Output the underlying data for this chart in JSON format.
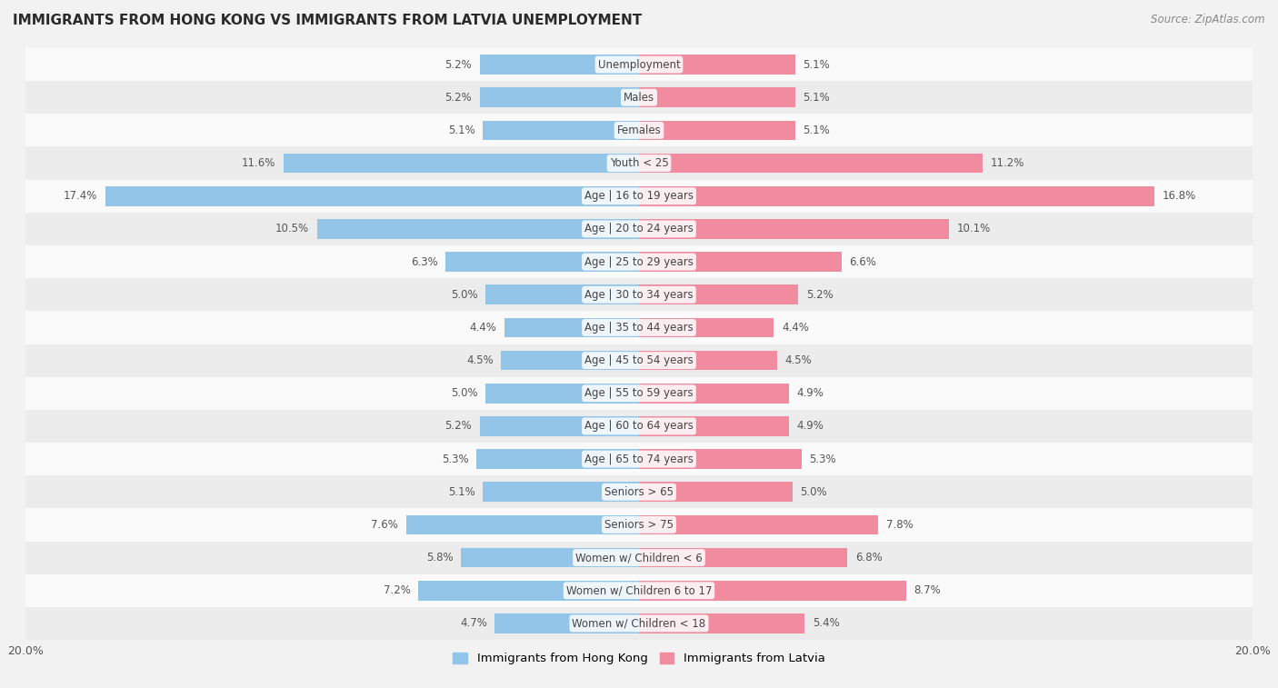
{
  "title": "IMMIGRANTS FROM HONG KONG VS IMMIGRANTS FROM LATVIA UNEMPLOYMENT",
  "source": "Source: ZipAtlas.com",
  "categories": [
    "Unemployment",
    "Males",
    "Females",
    "Youth < 25",
    "Age | 16 to 19 years",
    "Age | 20 to 24 years",
    "Age | 25 to 29 years",
    "Age | 30 to 34 years",
    "Age | 35 to 44 years",
    "Age | 45 to 54 years",
    "Age | 55 to 59 years",
    "Age | 60 to 64 years",
    "Age | 65 to 74 years",
    "Seniors > 65",
    "Seniors > 75",
    "Women w/ Children < 6",
    "Women w/ Children 6 to 17",
    "Women w/ Children < 18"
  ],
  "hong_kong_values": [
    5.2,
    5.2,
    5.1,
    11.6,
    17.4,
    10.5,
    6.3,
    5.0,
    4.4,
    4.5,
    5.0,
    5.2,
    5.3,
    5.1,
    7.6,
    5.8,
    7.2,
    4.7
  ],
  "latvia_values": [
    5.1,
    5.1,
    5.1,
    11.2,
    16.8,
    10.1,
    6.6,
    5.2,
    4.4,
    4.5,
    4.9,
    4.9,
    5.3,
    5.0,
    7.8,
    6.8,
    8.7,
    5.4
  ],
  "hong_kong_color": "#92c5e8",
  "latvia_color": "#f08ba0",
  "background_color": "#f2f2f2",
  "row_colors": [
    "#fafafa",
    "#ececec"
  ],
  "xlim": 20.0,
  "bar_height": 0.6,
  "label_fontsize": 8.5,
  "title_fontsize": 11,
  "legend_label_hk": "Immigrants from Hong Kong",
  "legend_label_lv": "Immigrants from Latvia",
  "x_tick_positions": [
    -20,
    20
  ],
  "x_tick_labels": [
    "20.0%",
    "20.0%"
  ]
}
